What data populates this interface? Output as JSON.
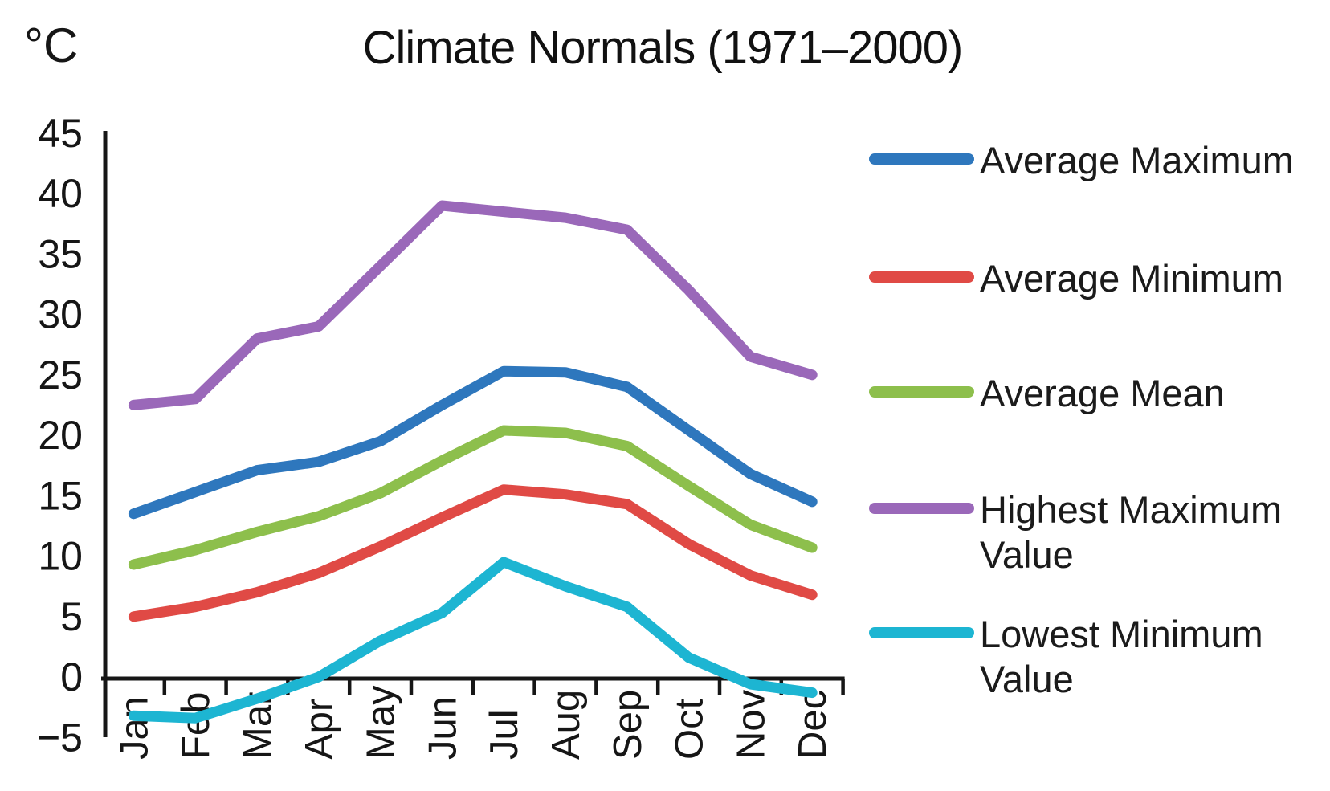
{
  "title": "Climate Normals (1971–2000)",
  "y_axis_unit": "°C",
  "chart_data": {
    "type": "line",
    "categories": [
      "Jan",
      "Feb",
      "Mar",
      "Apr",
      "May",
      "Jun",
      "Jul",
      "Aug",
      "Sep",
      "Oct",
      "Nov",
      "Dec"
    ],
    "series": [
      {
        "name": "Average Maximum",
        "color": "#2e77bd",
        "values": [
          13.5,
          15.3,
          17.1,
          17.8,
          19.5,
          22.5,
          25.3,
          25.2,
          24.0,
          20.4,
          16.8,
          14.5
        ]
      },
      {
        "name": "Average Minimum",
        "color": "#e04a45",
        "values": [
          5.0,
          5.8,
          7.0,
          8.6,
          10.8,
          13.2,
          15.5,
          15.1,
          14.3,
          11.0,
          8.4,
          6.8
        ]
      },
      {
        "name": "Average Mean",
        "color": "#8dbf4c",
        "values": [
          9.3,
          10.5,
          12.0,
          13.3,
          15.2,
          17.9,
          20.4,
          20.2,
          19.1,
          15.8,
          12.6,
          10.7
        ]
      },
      {
        "name": "Highest Maximum Value",
        "color": "#9a68b9",
        "values": [
          22.5,
          23.0,
          28.0,
          29.0,
          34.0,
          39.0,
          38.5,
          38.0,
          37.0,
          32.0,
          26.5,
          25.0
        ]
      },
      {
        "name": "Lowest Minimum Value",
        "color": "#1db5d2",
        "values": [
          -3.2,
          -3.4,
          -1.8,
          0.0,
          3.0,
          5.3,
          9.5,
          7.5,
          5.8,
          1.6,
          -0.6,
          -1.3
        ]
      }
    ],
    "ylabel": "°C",
    "xlabel": "",
    "ylim": [
      -5,
      45
    ],
    "y_ticks": [
      45,
      40,
      35,
      30,
      25,
      20,
      15,
      10,
      5,
      0,
      -5
    ],
    "grid": false,
    "legend_position": "right",
    "axis_color": "#161616"
  }
}
